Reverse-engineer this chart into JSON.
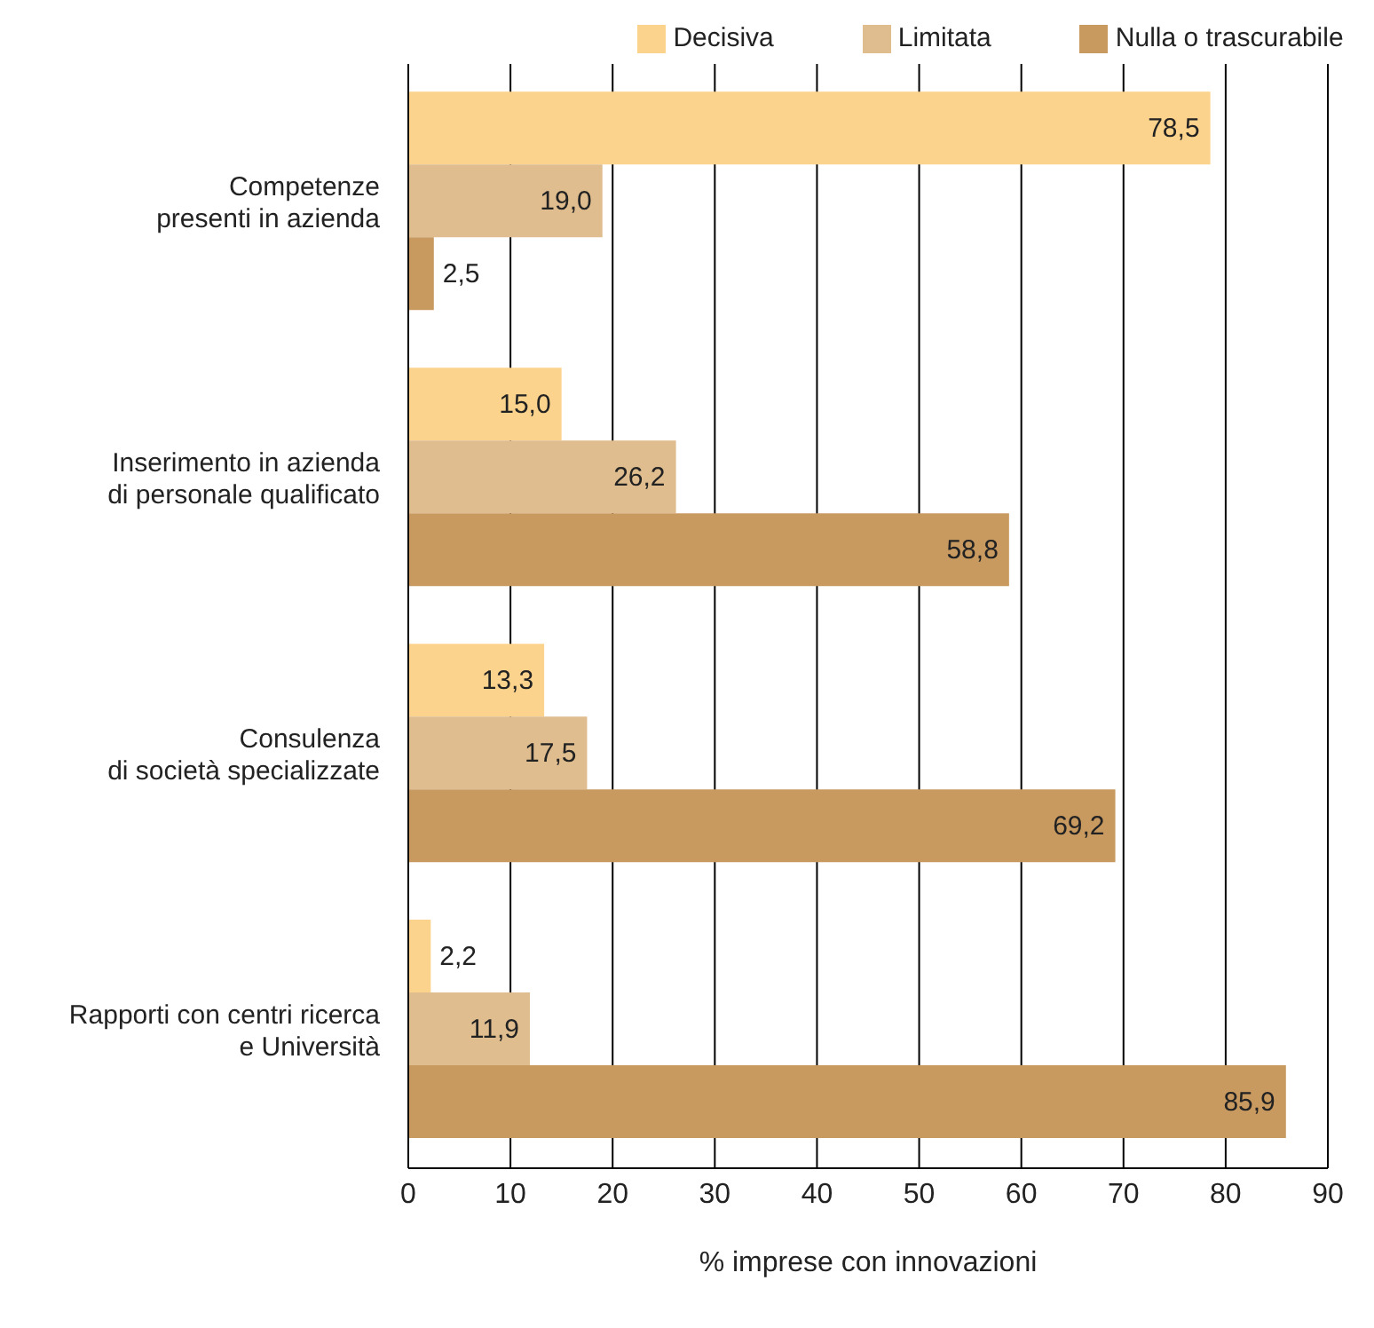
{
  "chart_data": {
    "type": "bar",
    "orientation": "horizontal",
    "categories": [
      "Competenze\npresenti in azienda",
      "Inserimento in azienda\ndi personale qualificato",
      "Consulenza\ndi società specializzate",
      "Rapporti con centri ricerca\ne Università"
    ],
    "series": [
      {
        "name": "Decisiva",
        "color": "#fcd38c",
        "values": [
          78.5,
          15.0,
          13.3,
          2.2
        ],
        "value_labels": [
          "78,5",
          "15,0",
          "13,3",
          "2,2"
        ]
      },
      {
        "name": "Limitata",
        "color": "#dfbd8e",
        "values": [
          19.0,
          26.2,
          17.5,
          11.9
        ],
        "value_labels": [
          "19,0",
          "26,2",
          "17,5",
          "11,9"
        ]
      },
      {
        "name": "Nulla o trascurabile",
        "color": "#c99a60",
        "values": [
          2.5,
          58.8,
          69.2,
          85.9
        ],
        "value_labels": [
          "2,5",
          "58,8",
          "69,2",
          "85,9"
        ]
      }
    ],
    "xlabel": "% imprese con innovazioni",
    "xlim": [
      0,
      90
    ],
    "xticks": [
      0,
      10,
      20,
      30,
      40,
      50,
      60,
      70,
      80,
      90
    ],
    "grid": "x",
    "legend": "top"
  }
}
